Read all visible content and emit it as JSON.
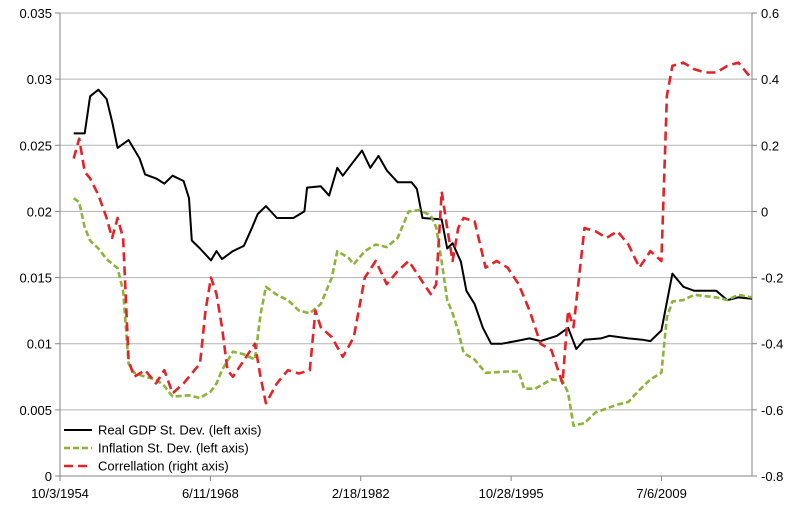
{
  "chart_data": {
    "type": "line",
    "title": "",
    "xlabel": "",
    "ylabel": "",
    "ylabel_right": "",
    "grid": true,
    "legend_position": "bottom-left",
    "x_range": [
      "1954-10-03",
      "2017-09-30"
    ],
    "x_ticks": [
      "10/3/1954",
      "6/11/1968",
      "2/18/1982",
      "10/28/1995",
      "7/6/2009"
    ],
    "y_left": {
      "ylim": [
        0,
        0.035
      ],
      "ticks": [
        "0",
        "0.005",
        "0.01",
        "0.015",
        "0.02",
        "0.025",
        "0.03",
        "0.035"
      ]
    },
    "y_right": {
      "ylim": [
        -0.8,
        0.6
      ],
      "ticks": [
        "-0.8",
        "-0.6",
        "-0.4",
        "-0.2",
        "0",
        "0.2",
        "0.4",
        "0.6"
      ]
    },
    "series": [
      {
        "name": "Real GDP St. Dev. (left axis)",
        "axis": "left",
        "color": "#000000",
        "dash": "solid",
        "points": [
          [
            "1956-01-01",
            0.0259
          ],
          [
            "1957-01-01",
            0.0259
          ],
          [
            "1957-07-01",
            0.0287
          ],
          [
            "1958-04-01",
            0.0292
          ],
          [
            "1959-01-01",
            0.0285
          ],
          [
            "1959-07-01",
            0.0268
          ],
          [
            "1960-01-01",
            0.0248
          ],
          [
            "1961-01-01",
            0.0254
          ],
          [
            "1962-01-01",
            0.024
          ],
          [
            "1962-07-01",
            0.0228
          ],
          [
            "1963-07-01",
            0.0225
          ],
          [
            "1964-04-01",
            0.0221
          ],
          [
            "1965-01-01",
            0.0227
          ],
          [
            "1966-01-01",
            0.0223
          ],
          [
            "1966-07-01",
            0.021
          ],
          [
            "1966-10-01",
            0.0178
          ],
          [
            "1967-07-01",
            0.0172
          ],
          [
            "1968-07-01",
            0.0163
          ],
          [
            "1969-01-01",
            0.017
          ],
          [
            "1969-07-01",
            0.0164
          ],
          [
            "1970-07-01",
            0.017
          ],
          [
            "1971-07-01",
            0.0174
          ],
          [
            "1972-04-01",
            0.0188
          ],
          [
            "1972-10-01",
            0.0198
          ],
          [
            "1973-07-01",
            0.0204
          ],
          [
            "1974-07-01",
            0.0195
          ],
          [
            "1976-01-01",
            0.0195
          ],
          [
            "1977-01-01",
            0.02
          ],
          [
            "1977-04-01",
            0.0218
          ],
          [
            "1978-07-01",
            0.0219
          ],
          [
            "1979-04-01",
            0.0212
          ],
          [
            "1980-01-01",
            0.0233
          ],
          [
            "1980-07-01",
            0.0227
          ],
          [
            "1981-07-01",
            0.0238
          ],
          [
            "1982-04-01",
            0.0246
          ],
          [
            "1983-01-01",
            0.0233
          ],
          [
            "1983-10-01",
            0.0242
          ],
          [
            "1984-07-01",
            0.0231
          ],
          [
            "1985-07-01",
            0.0222
          ],
          [
            "1986-10-01",
            0.0222
          ],
          [
            "1987-04-01",
            0.0217
          ],
          [
            "1987-10-01",
            0.0195
          ],
          [
            "1989-07-01",
            0.0194
          ],
          [
            "1990-01-01",
            0.0172
          ],
          [
            "1990-07-01",
            0.0176
          ],
          [
            "1991-04-01",
            0.0162
          ],
          [
            "1991-10-01",
            0.014
          ],
          [
            "1992-07-01",
            0.013
          ],
          [
            "1993-04-01",
            0.0112
          ],
          [
            "1994-01-01",
            0.01
          ],
          [
            "1995-01-01",
            0.01
          ],
          [
            "1996-04-01",
            0.0102
          ],
          [
            "1997-07-01",
            0.0104
          ],
          [
            "1998-07-01",
            0.0102
          ],
          [
            "2000-01-01",
            0.0106
          ],
          [
            "2001-01-01",
            0.0112
          ],
          [
            "2001-10-01",
            0.0096
          ],
          [
            "2002-07-01",
            0.0103
          ],
          [
            "2004-01-01",
            0.0104
          ],
          [
            "2004-10-01",
            0.0106
          ],
          [
            "2006-07-01",
            0.0104
          ],
          [
            "2007-10-01",
            0.0103
          ],
          [
            "2008-07-01",
            0.0102
          ],
          [
            "2009-07-01",
            0.011
          ],
          [
            "2010-07-01",
            0.0153
          ],
          [
            "2011-07-01",
            0.0143
          ],
          [
            "2012-07-01",
            0.014
          ],
          [
            "2014-07-01",
            0.014
          ],
          [
            "2015-07-01",
            0.0133
          ],
          [
            "2016-07-01",
            0.0135
          ],
          [
            "2017-09-30",
            0.0134
          ]
        ]
      },
      {
        "name": "Inflation St. Dev. (left axis)",
        "axis": "left",
        "color": "#8db33b",
        "dash": "dashed",
        "points": [
          [
            "1956-01-01",
            0.021
          ],
          [
            "1956-07-01",
            0.0207
          ],
          [
            "1957-01-01",
            0.0188
          ],
          [
            "1957-07-01",
            0.0178
          ],
          [
            "1958-04-01",
            0.0172
          ],
          [
            "1959-01-01",
            0.0164
          ],
          [
            "1960-01-01",
            0.0157
          ],
          [
            "1960-07-01",
            0.014
          ],
          [
            "1961-01-01",
            0.0085
          ],
          [
            "1961-07-01",
            0.0078
          ],
          [
            "1962-07-01",
            0.0075
          ],
          [
            "1963-07-01",
            0.0073
          ],
          [
            "1964-04-01",
            0.0068
          ],
          [
            "1965-01-01",
            0.006
          ],
          [
            "1966-07-01",
            0.0061
          ],
          [
            "1967-07-01",
            0.0059
          ],
          [
            "1968-07-01",
            0.0064
          ],
          [
            "1969-01-01",
            0.007
          ],
          [
            "1969-07-01",
            0.008
          ],
          [
            "1970-07-01",
            0.0094
          ],
          [
            "1971-07-01",
            0.0092
          ],
          [
            "1972-07-01",
            0.0088
          ],
          [
            "1973-01-01",
            0.0122
          ],
          [
            "1973-07-01",
            0.0143
          ],
          [
            "1974-07-01",
            0.0137
          ],
          [
            "1975-07-01",
            0.0133
          ],
          [
            "1976-07-01",
            0.0125
          ],
          [
            "1977-07-01",
            0.0123
          ],
          [
            "1978-07-01",
            0.013
          ],
          [
            "1979-07-01",
            0.015
          ],
          [
            "1980-01-01",
            0.017
          ],
          [
            "1981-01-01",
            0.0165
          ],
          [
            "1981-07-01",
            0.016
          ],
          [
            "1982-07-01",
            0.017
          ],
          [
            "1983-07-01",
            0.0175
          ],
          [
            "1984-07-01",
            0.0173
          ],
          [
            "1985-07-01",
            0.018
          ],
          [
            "1986-07-01",
            0.02
          ],
          [
            "1987-07-01",
            0.0201
          ],
          [
            "1988-07-01",
            0.0197
          ],
          [
            "1989-01-01",
            0.0188
          ],
          [
            "1989-07-01",
            0.0162
          ],
          [
            "1990-01-01",
            0.0133
          ],
          [
            "1990-07-01",
            0.0123
          ],
          [
            "1991-01-01",
            0.011
          ],
          [
            "1991-07-01",
            0.0093
          ],
          [
            "1992-07-01",
            0.0088
          ],
          [
            "1993-07-01",
            0.0078
          ],
          [
            "1995-07-01",
            0.0079
          ],
          [
            "1996-07-01",
            0.0079
          ],
          [
            "1997-01-01",
            0.0066
          ],
          [
            "1998-01-01",
            0.0066
          ],
          [
            "1999-07-01",
            0.0073
          ],
          [
            "2000-07-01",
            0.0072
          ],
          [
            "2001-01-01",
            0.0063
          ],
          [
            "2001-07-01",
            0.0038
          ],
          [
            "2002-07-01",
            0.004
          ],
          [
            "2003-07-01",
            0.0048
          ],
          [
            "2004-07-01",
            0.0051
          ],
          [
            "2005-07-01",
            0.0054
          ],
          [
            "2006-07-01",
            0.0056
          ],
          [
            "2007-07-01",
            0.0065
          ],
          [
            "2008-07-01",
            0.0073
          ],
          [
            "2009-07-01",
            0.0078
          ],
          [
            "2010-01-01",
            0.012
          ],
          [
            "2010-07-01",
            0.0132
          ],
          [
            "2011-07-01",
            0.0133
          ],
          [
            "2012-07-01",
            0.0137
          ],
          [
            "2014-07-01",
            0.0135
          ],
          [
            "2015-07-01",
            0.0133
          ],
          [
            "2016-07-01",
            0.0137
          ],
          [
            "2017-09-30",
            0.0135
          ]
        ]
      },
      {
        "name": "Correllation (right axis)",
        "axis": "right",
        "color": "#e3232a",
        "dash": "dashed",
        "points": [
          [
            "1956-01-01",
            0.16
          ],
          [
            "1956-07-01",
            0.22
          ],
          [
            "1957-01-01",
            0.12
          ],
          [
            "1957-07-01",
            0.1
          ],
          [
            "1958-04-01",
            0.05
          ],
          [
            "1959-01-01",
            -0.02
          ],
          [
            "1959-07-01",
            -0.08
          ],
          [
            "1960-01-01",
            -0.02
          ],
          [
            "1960-07-01",
            -0.08
          ],
          [
            "1961-01-01",
            -0.45
          ],
          [
            "1961-07-01",
            -0.5
          ],
          [
            "1962-07-01",
            -0.48
          ],
          [
            "1963-07-01",
            -0.52
          ],
          [
            "1964-04-01",
            -0.48
          ],
          [
            "1965-01-01",
            -0.55
          ],
          [
            "1966-01-01",
            -0.52
          ],
          [
            "1966-07-01",
            -0.5
          ],
          [
            "1967-07-01",
            -0.46
          ],
          [
            "1968-01-01",
            -0.3
          ],
          [
            "1968-07-01",
            -0.2
          ],
          [
            "1969-01-01",
            -0.25
          ],
          [
            "1969-07-01",
            -0.35
          ],
          [
            "1970-01-01",
            -0.48
          ],
          [
            "1970-07-01",
            -0.5
          ],
          [
            "1971-07-01",
            -0.45
          ],
          [
            "1972-07-01",
            -0.4
          ],
          [
            "1973-01-01",
            -0.5
          ],
          [
            "1973-07-01",
            -0.58
          ],
          [
            "1974-07-01",
            -0.52
          ],
          [
            "1975-07-01",
            -0.48
          ],
          [
            "1976-07-01",
            -0.49
          ],
          [
            "1977-07-01",
            -0.48
          ],
          [
            "1978-01-01",
            -0.3
          ],
          [
            "1978-07-01",
            -0.35
          ],
          [
            "1979-07-01",
            -0.38
          ],
          [
            "1980-07-01",
            -0.44
          ],
          [
            "1981-07-01",
            -0.38
          ],
          [
            "1982-07-01",
            -0.2
          ],
          [
            "1983-07-01",
            -0.15
          ],
          [
            "1984-07-01",
            -0.22
          ],
          [
            "1985-07-01",
            -0.18
          ],
          [
            "1986-07-01",
            -0.15
          ],
          [
            "1987-07-01",
            -0.2
          ],
          [
            "1988-07-01",
            -0.25
          ],
          [
            "1989-01-01",
            -0.22
          ],
          [
            "1989-07-01",
            0.06
          ],
          [
            "1990-01-01",
            -0.05
          ],
          [
            "1990-07-01",
            -0.15
          ],
          [
            "1991-01-01",
            -0.05
          ],
          [
            "1991-07-01",
            -0.02
          ],
          [
            "1992-07-01",
            -0.03
          ],
          [
            "1993-07-01",
            -0.17
          ],
          [
            "1994-07-01",
            -0.15
          ],
          [
            "1995-07-01",
            -0.17
          ],
          [
            "1996-07-01",
            -0.22
          ],
          [
            "1997-07-01",
            -0.3
          ],
          [
            "1998-07-01",
            -0.4
          ],
          [
            "1999-07-01",
            -0.42
          ],
          [
            "2000-07-01",
            -0.52
          ],
          [
            "2001-01-01",
            -0.3
          ],
          [
            "2001-07-01",
            -0.35
          ],
          [
            "2002-07-01",
            -0.05
          ],
          [
            "2003-07-01",
            -0.06
          ],
          [
            "2004-07-01",
            -0.08
          ],
          [
            "2005-07-01",
            -0.06
          ],
          [
            "2006-07-01",
            -0.1
          ],
          [
            "2007-07-01",
            -0.17
          ],
          [
            "2008-07-01",
            -0.12
          ],
          [
            "2009-07-01",
            -0.15
          ],
          [
            "2010-01-01",
            0.35
          ],
          [
            "2010-07-01",
            0.44
          ],
          [
            "2011-07-01",
            0.45
          ],
          [
            "2012-07-01",
            0.43
          ],
          [
            "2013-07-01",
            0.42
          ],
          [
            "2014-07-01",
            0.42
          ],
          [
            "2015-07-01",
            0.44
          ],
          [
            "2016-07-01",
            0.45
          ],
          [
            "2017-09-30",
            0.4
          ]
        ]
      }
    ]
  }
}
